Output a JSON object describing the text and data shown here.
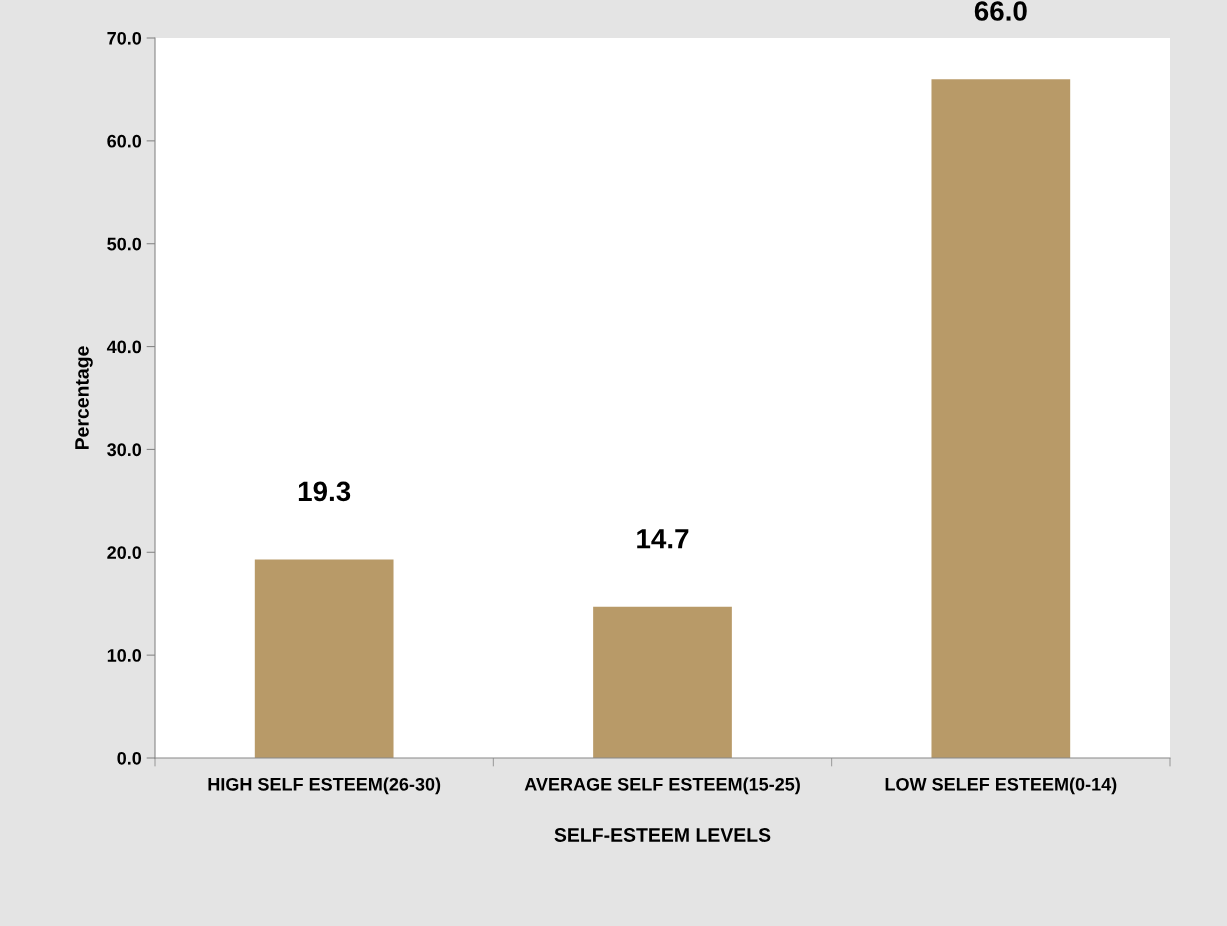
{
  "chart_data": {
    "type": "bar",
    "xlabel": "SELF-ESTEEM LEVELS",
    "ylabel": "Percentage",
    "categories": [
      "HIGH SELF ESTEEM(26-30)",
      "AVERAGE SELF ESTEEM(15-25)",
      "LOW SELEF ESTEEM(0-14)"
    ],
    "values": [
      19.3,
      14.7,
      66.0
    ],
    "color": "#b89a68",
    "value_labels": [
      "19.3",
      "14.7",
      "66.0"
    ],
    "ylim": [
      0,
      70
    ],
    "yticks": [
      {
        "value": 0,
        "label": "0.0"
      },
      {
        "value": 10,
        "label": "10.0"
      },
      {
        "value": 20,
        "label": "20.0"
      },
      {
        "value": 30,
        "label": "30.0"
      },
      {
        "value": 40,
        "label": "40.0"
      },
      {
        "value": 50,
        "label": "50.0"
      },
      {
        "value": 60,
        "label": "60.0"
      },
      {
        "value": 70,
        "label": "70.0"
      }
    ],
    "grid": false,
    "legend": false
  }
}
